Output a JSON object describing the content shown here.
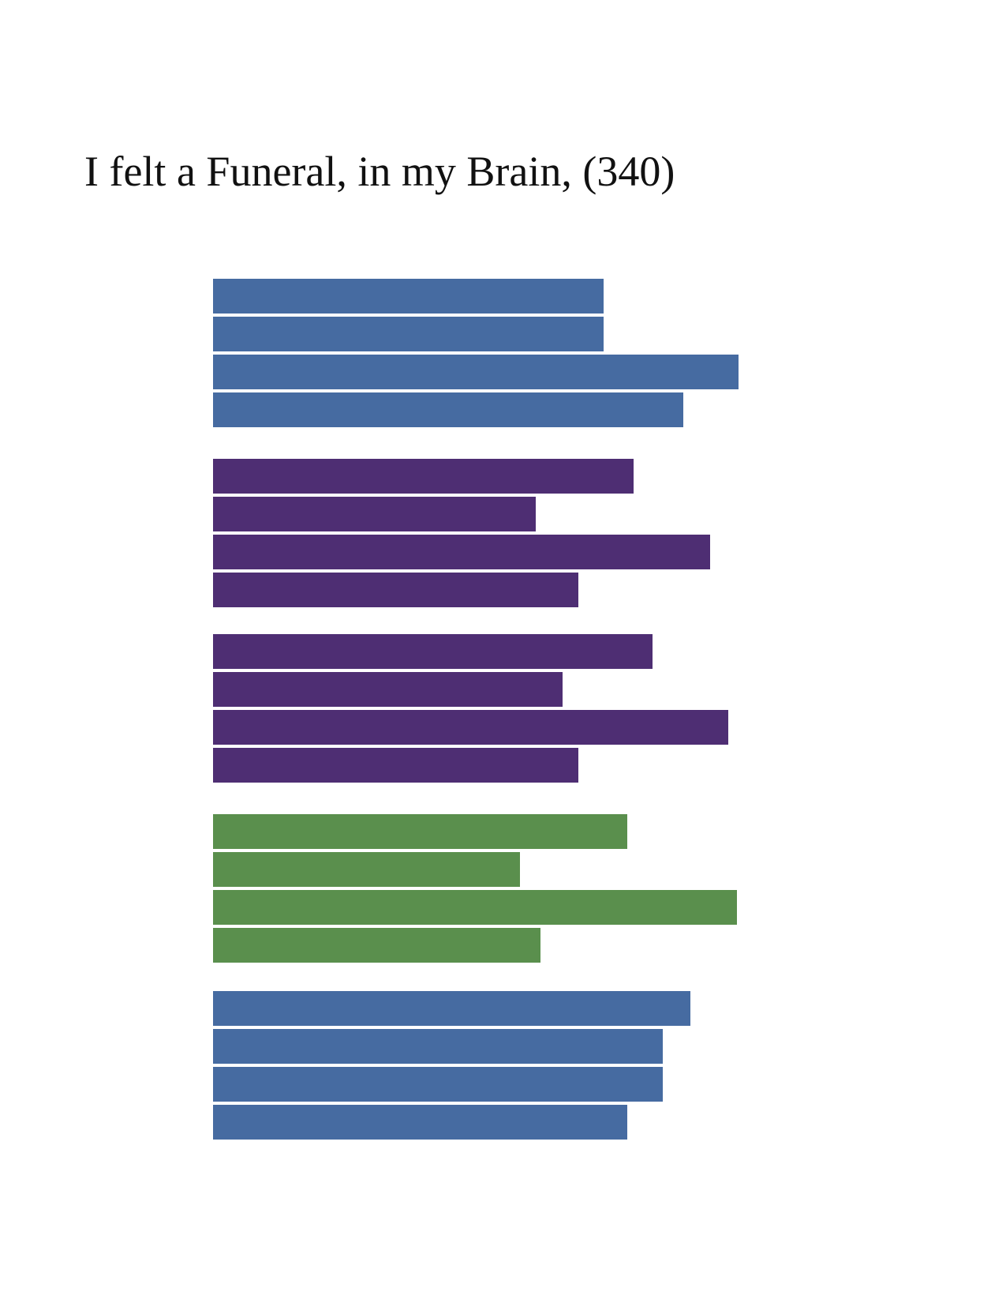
{
  "title": "I felt a Funeral, in my Brain, (340)",
  "colors": {
    "blue": "#466ba1",
    "purple": "#4e2e73",
    "green": "#5a8f4d"
  },
  "chart_data": {
    "type": "bar",
    "orientation": "horizontal",
    "title": "I felt a Funeral, in my Brain, (340)",
    "xlabel": "",
    "ylabel": "",
    "grid": false,
    "legend": "none",
    "xlim": [
      0,
      700
    ],
    "groups": [
      {
        "color": "blue",
        "values": [
          495,
          495,
          666,
          596
        ]
      },
      {
        "color": "purple",
        "values": [
          533,
          409,
          630,
          463
        ]
      },
      {
        "color": "purple",
        "values": [
          557,
          443,
          653,
          463
        ]
      },
      {
        "color": "green",
        "values": [
          525,
          389,
          664,
          415
        ]
      },
      {
        "color": "blue",
        "values": [
          605,
          570,
          570,
          525
        ]
      }
    ]
  }
}
